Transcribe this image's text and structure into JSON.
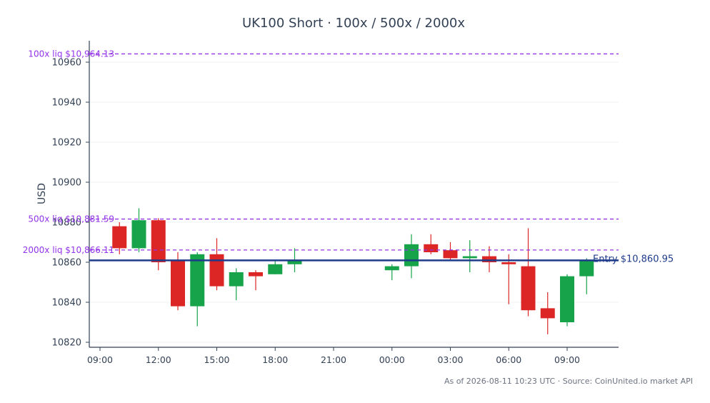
{
  "chart_data": {
    "type": "candlestick",
    "title": "UK100 Short · 100x / 500x / 2000x",
    "ylabel": "USD",
    "xlabel": "",
    "ylim": [
      10817,
      10970
    ],
    "x_ticks": [
      "09:00",
      "12:00",
      "15:00",
      "18:00",
      "21:00",
      "00:00",
      "03:00",
      "06:00",
      "09:00"
    ],
    "y_ticks": [
      10820,
      10840,
      10860,
      10880,
      10900,
      10920,
      10940,
      10960
    ],
    "grid": "horizontal",
    "colors": {
      "up": "#16a34a",
      "down": "#dc2626",
      "entry_line": "#1e3a8a",
      "liq_line": "#9333ea",
      "axis": "#334155",
      "grid": "#eef1f5",
      "title": "#334155",
      "footer": "#6b7280"
    },
    "candles": [
      {
        "time": "10:00",
        "open": 10878,
        "high": 10880,
        "low": 10864,
        "close": 10867
      },
      {
        "time": "11:00",
        "open": 10867,
        "high": 10887,
        "low": 10865,
        "close": 10881
      },
      {
        "time": "12:00",
        "open": 10881,
        "high": 10882,
        "low": 10856,
        "close": 10860
      },
      {
        "time": "13:00",
        "open": 10861,
        "high": 10865,
        "low": 10836,
        "close": 10838
      },
      {
        "time": "14:00",
        "open": 10838,
        "high": 10865,
        "low": 10828,
        "close": 10864
      },
      {
        "time": "15:00",
        "open": 10864,
        "high": 10872,
        "low": 10846,
        "close": 10848
      },
      {
        "time": "16:00",
        "open": 10848,
        "high": 10857,
        "low": 10841,
        "close": 10855
      },
      {
        "time": "17:00",
        "open": 10855,
        "high": 10856,
        "low": 10846,
        "close": 10853
      },
      {
        "time": "18:00",
        "open": 10854,
        "high": 10861,
        "low": 10854,
        "close": 10859
      },
      {
        "time": "19:00",
        "open": 10859,
        "high": 10867,
        "low": 10855,
        "close": 10861
      },
      {
        "time": "00:00",
        "open": 10856,
        "high": 10859,
        "low": 10851,
        "close": 10858
      },
      {
        "time": "01:00",
        "open": 10858,
        "high": 10874,
        "low": 10852,
        "close": 10869
      },
      {
        "time": "02:00",
        "open": 10869,
        "high": 10874,
        "low": 10864,
        "close": 10865
      },
      {
        "time": "03:00",
        "open": 10866,
        "high": 10870,
        "low": 10861,
        "close": 10862
      },
      {
        "time": "04:00",
        "open": 10862,
        "high": 10871,
        "low": 10855,
        "close": 10863
      },
      {
        "time": "05:00",
        "open": 10863,
        "high": 10868,
        "low": 10855,
        "close": 10860
      },
      {
        "time": "06:00",
        "open": 10860,
        "high": 10864,
        "low": 10839,
        "close": 10859
      },
      {
        "time": "07:00",
        "open": 10858,
        "high": 10877,
        "low": 10833,
        "close": 10836
      },
      {
        "time": "08:00",
        "open": 10837,
        "high": 10845,
        "low": 10824,
        "close": 10832
      },
      {
        "time": "09:00",
        "open": 10830,
        "high": 10854,
        "low": 10828,
        "close": 10853
      },
      {
        "time": "10:00",
        "open": 10853,
        "high": 10862,
        "low": 10844,
        "close": 10861
      }
    ],
    "reference_lines": [
      {
        "kind": "entry",
        "label": "Entry $10,860.95",
        "value": 10860.95
      },
      {
        "kind": "liquidation",
        "label": "100x liq $10,964.13",
        "value": 10964.13
      },
      {
        "kind": "liquidation",
        "label": "500x liq $10,881.59",
        "value": 10881.59
      },
      {
        "kind": "liquidation",
        "label": "2000x liq $10,866.11",
        "value": 10866.11
      }
    ],
    "footer": "As of 2026-08-11 10:23 UTC · Source: CoinUnited.io market API"
  }
}
